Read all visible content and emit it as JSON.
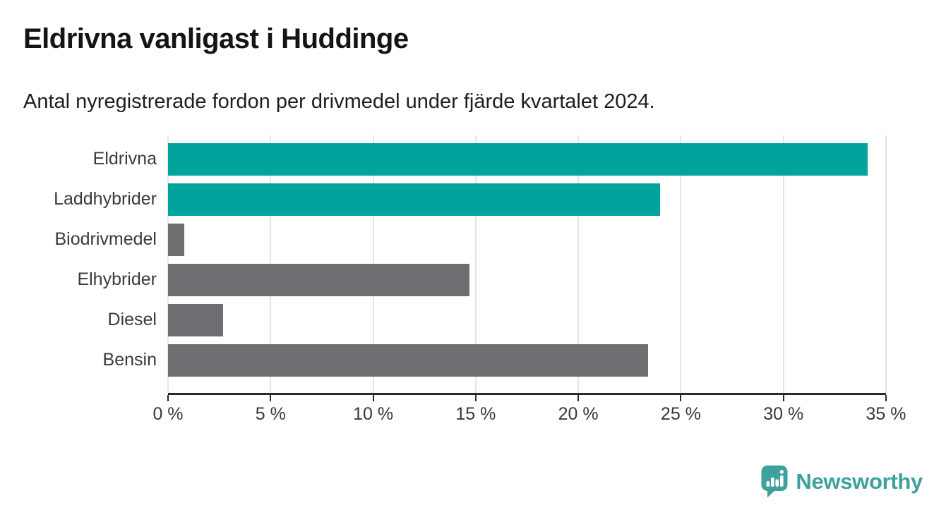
{
  "header": {
    "title": "Eldrivna vanligast i Huddinge",
    "subtitle": "Antal nyregistrerade fordon per drivmedel under fjärde kvartalet 2024."
  },
  "chart_data": {
    "type": "bar",
    "orientation": "horizontal",
    "title": "Eldrivna vanligast i Huddinge",
    "subtitle": "Antal nyregistrerade fordon per drivmedel under fjärde kvartalet 2024.",
    "categories": [
      "Eldrivna",
      "Laddhybrider",
      "Biodrivmedel",
      "Elhybrider",
      "Diesel",
      "Bensin"
    ],
    "values": [
      34.1,
      24.0,
      0.8,
      14.7,
      2.7,
      23.4
    ],
    "unit": "%",
    "xlim": [
      0,
      35
    ],
    "xticks": [
      0,
      5,
      10,
      15,
      20,
      25,
      30,
      35
    ],
    "xtick_labels": [
      "0 %",
      "5 %",
      "10 %",
      "15 %",
      "20 %",
      "25 %",
      "30 %",
      "35 %"
    ],
    "grid": true,
    "legend": "none",
    "bar_colors": [
      "#00a49c",
      "#00a49c",
      "#6e6e73",
      "#6e6e73",
      "#6e6e73",
      "#6e6e73"
    ],
    "highlight_color": "#00a49c",
    "base_color": "#6e6e73",
    "gridline_color": "#e4e4e4",
    "axis_color": "#2a2a2a"
  },
  "footer": {
    "brand": "Newsworthy",
    "brand_color": "#3da19d",
    "logo_icon": "speech-bubble-bar-chart-icon"
  }
}
